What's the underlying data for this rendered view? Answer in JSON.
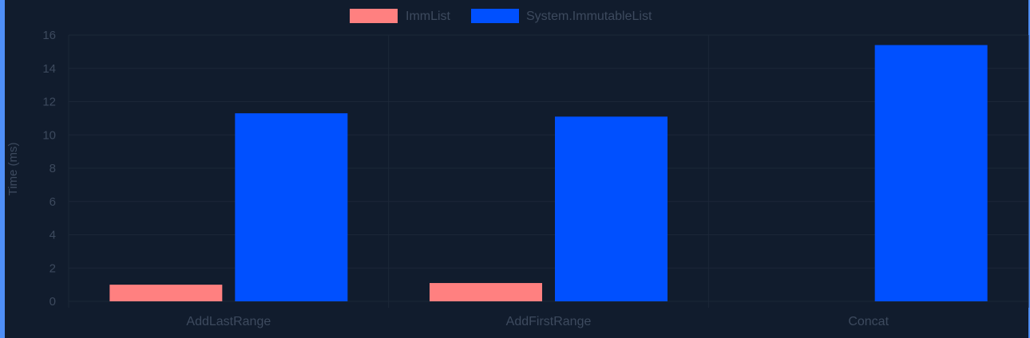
{
  "chart_data": {
    "type": "bar",
    "title": "",
    "xlabel": "",
    "ylabel": "Time (ms)",
    "categories": [
      "AddLastRange",
      "AddFirstRange",
      "Concat"
    ],
    "series": [
      {
        "name": "ImmList",
        "values": [
          1.0,
          1.1,
          null
        ],
        "color": "#ff8080"
      },
      {
        "name": "System.ImmutableList",
        "values": [
          11.3,
          11.1,
          15.4
        ],
        "color": "#0050ff"
      }
    ],
    "ylim": [
      0,
      16
    ],
    "yticks": [
      "0",
      "2",
      "4",
      "6",
      "8",
      "10",
      "12",
      "14",
      "16"
    ],
    "grid": true,
    "legend_position": "top-center"
  },
  "colors": {
    "background": "#111c2d",
    "grid": "#1c2738",
    "text": "#3d4a5e",
    "accent": "#4f8ff7"
  }
}
